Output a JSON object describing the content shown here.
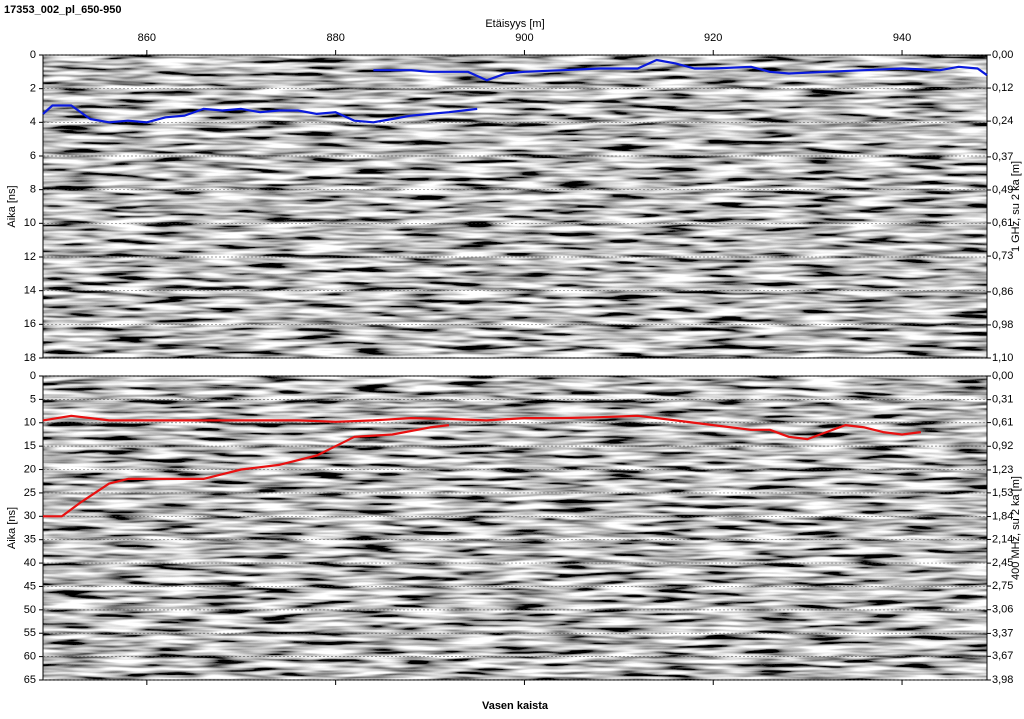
{
  "chart_data": [
    {
      "type": "line",
      "title": "17353_002_pl_650-950",
      "xlabel": "Etäisyys [m]",
      "ylabel": "Aika [ns]",
      "y2label": "1 GHz, su 2 ka [m]",
      "y_inverted": true,
      "grid": true,
      "xlim": [
        849,
        949
      ],
      "xticks": [
        860,
        880,
        900,
        920,
        940
      ],
      "ylim": [
        0,
        18
      ],
      "yticks": [
        0,
        2,
        4,
        6,
        8,
        10,
        12,
        14,
        16,
        18
      ],
      "y2lim": [
        0,
        1.1
      ],
      "y2ticks": [
        {
          "value": 0,
          "label": "0,00"
        },
        {
          "value": 0.12,
          "label": "0,12"
        },
        {
          "value": 0.24,
          "label": "0,24"
        },
        {
          "value": 0.37,
          "label": "0,37"
        },
        {
          "value": 0.49,
          "label": "0,49"
        },
        {
          "value": 0.61,
          "label": "0,61"
        },
        {
          "value": 0.73,
          "label": "0,73"
        },
        {
          "value": 0.86,
          "label": "0,86"
        },
        {
          "value": 0.98,
          "label": "0,98"
        },
        {
          "value": 1.1,
          "label": "1,10"
        }
      ],
      "series": [
        {
          "color": "#0a1adc",
          "x": [
            849,
            850,
            852,
            854,
            856,
            858,
            860,
            862,
            864,
            866,
            868,
            870,
            872,
            874,
            876,
            878,
            880,
            882,
            884,
            886,
            888,
            890,
            892,
            895
          ],
          "values": [
            3.5,
            3.0,
            3.0,
            3.8,
            4.0,
            3.9,
            4.0,
            3.7,
            3.6,
            3.2,
            3.3,
            3.2,
            3.4,
            3.3,
            3.3,
            3.5,
            3.4,
            3.9,
            4.0,
            3.8,
            3.6,
            3.5,
            3.4,
            3.2
          ]
        },
        {
          "color": "#0a1adc",
          "x": [
            884,
            888,
            890,
            892,
            894,
            896,
            898,
            900,
            904,
            908,
            912,
            914,
            916,
            918,
            920,
            924,
            926,
            928,
            932,
            936,
            940,
            944,
            946,
            948,
            949
          ],
          "values": [
            0.9,
            0.9,
            1.0,
            1.0,
            1.0,
            1.5,
            1.1,
            1.0,
            0.9,
            0.8,
            0.8,
            0.3,
            0.5,
            0.8,
            0.8,
            0.7,
            1.0,
            1.1,
            1.0,
            0.9,
            0.8,
            0.9,
            0.7,
            0.8,
            1.2
          ]
        }
      ]
    },
    {
      "type": "line",
      "xlabel": "Vasen kaista",
      "ylabel": "Aika [ns]",
      "y2label": "400 MHz, su 2 ka [m]",
      "y_inverted": true,
      "grid": true,
      "xlim": [
        849,
        949
      ],
      "xticks": [
        860,
        880,
        900,
        920,
        940
      ],
      "ylim": [
        0,
        65
      ],
      "yticks": [
        0,
        5,
        10,
        15,
        20,
        25,
        30,
        35,
        40,
        45,
        50,
        55,
        60,
        65
      ],
      "y2lim": [
        0,
        3.98
      ],
      "y2ticks": [
        {
          "value": 0,
          "label": "0,00"
        },
        {
          "value": 0.31,
          "label": "0,31"
        },
        {
          "value": 0.61,
          "label": "0,61"
        },
        {
          "value": 0.92,
          "label": "0,92"
        },
        {
          "value": 1.23,
          "label": "1,23"
        },
        {
          "value": 1.53,
          "label": "1,53"
        },
        {
          "value": 1.84,
          "label": "1,84"
        },
        {
          "value": 2.14,
          "label": "2,14"
        },
        {
          "value": 2.45,
          "label": "2,45"
        },
        {
          "value": 2.75,
          "label": "2,75"
        },
        {
          "value": 3.06,
          "label": "3,06"
        },
        {
          "value": 3.37,
          "label": "3,37"
        },
        {
          "value": 3.67,
          "label": "3,67"
        },
        {
          "value": 3.98,
          "label": "3,98"
        }
      ],
      "series": [
        {
          "color": "#e81010",
          "x": [
            849,
            852,
            856,
            860,
            864,
            868,
            872,
            876,
            880,
            884,
            888,
            892,
            896,
            900,
            904,
            908,
            912,
            916,
            920,
            924,
            926,
            928,
            930,
            932,
            934,
            936,
            938,
            940,
            942
          ],
          "values": [
            9.5,
            8.5,
            9.5,
            9.5,
            9.5,
            9.5,
            9.5,
            9.5,
            9.8,
            9.5,
            9.0,
            9.2,
            9.5,
            9.0,
            9.0,
            8.8,
            8.5,
            9.5,
            10.5,
            11.5,
            11.5,
            13.0,
            13.5,
            12.0,
            10.5,
            11.0,
            12.0,
            12.5,
            12.0
          ]
        },
        {
          "color": "#e81010",
          "x": [
            849,
            851,
            853,
            856,
            858,
            862,
            866,
            868,
            870,
            874,
            876,
            878,
            880,
            882,
            886,
            890,
            892
          ],
          "values": [
            30,
            30,
            27,
            23,
            22,
            22,
            22,
            21,
            20,
            19,
            18,
            17,
            15,
            13,
            12.5,
            11,
            10.5
          ]
        }
      ]
    }
  ]
}
